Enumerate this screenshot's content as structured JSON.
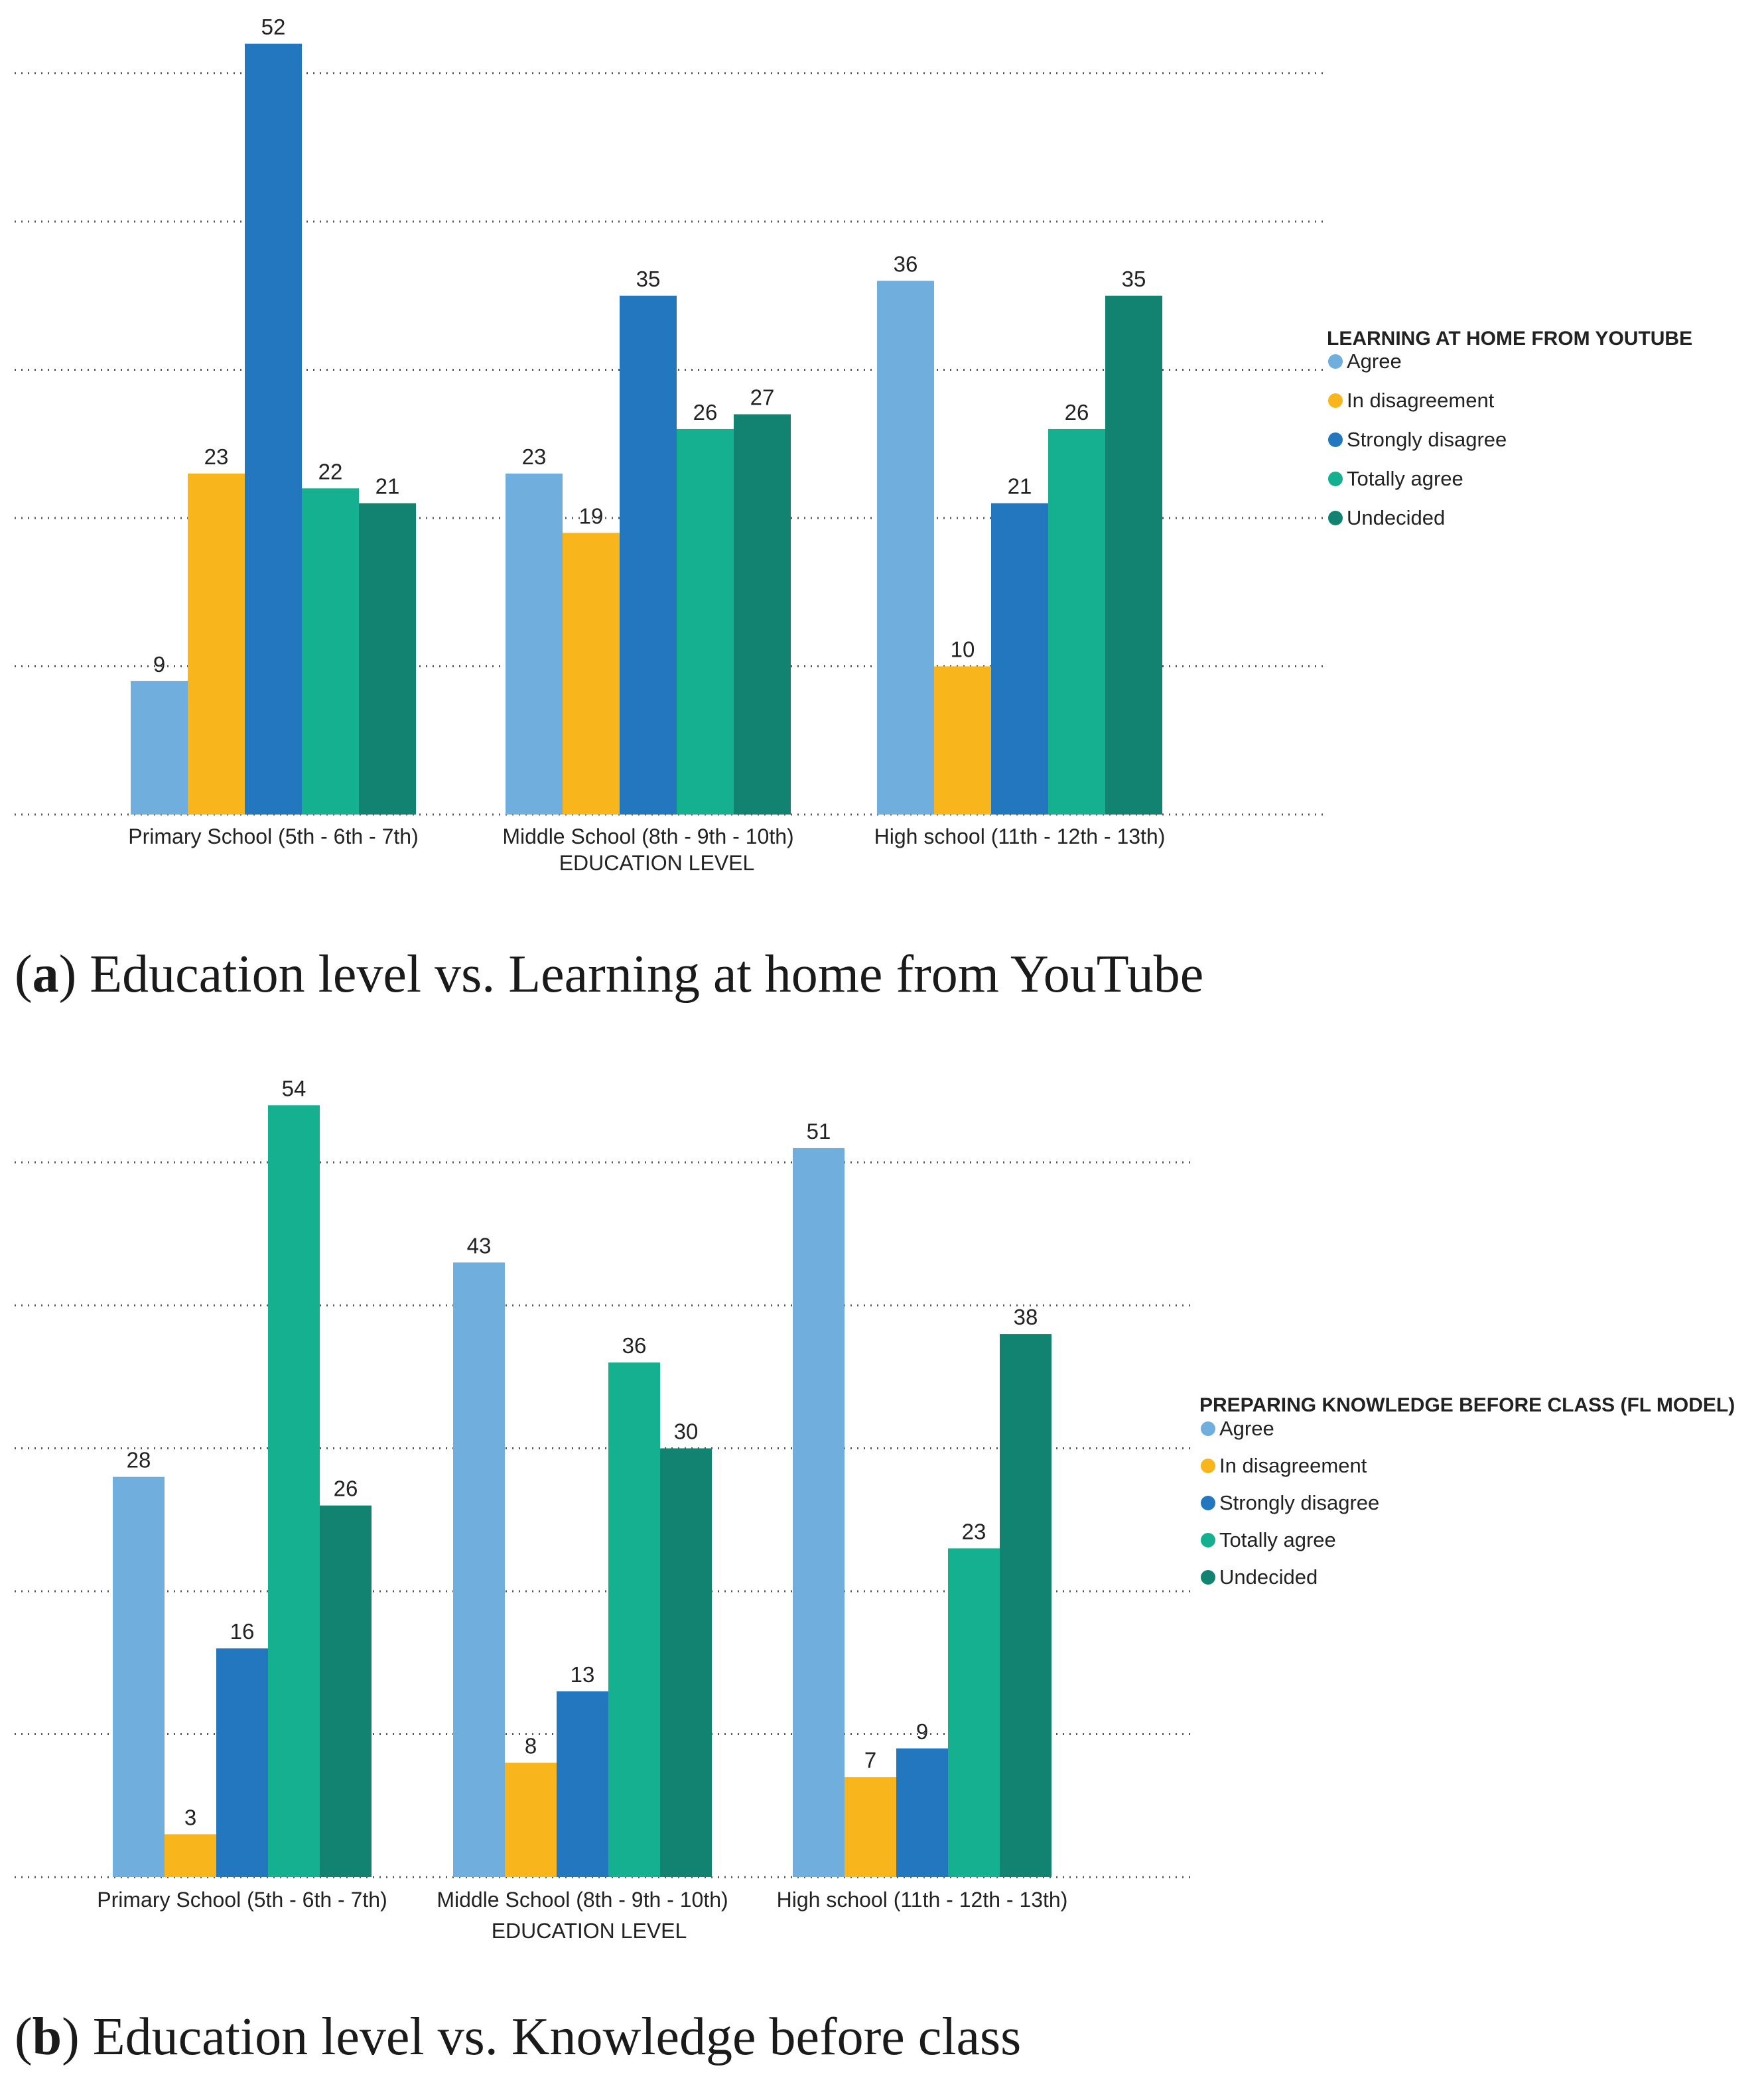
{
  "chart_data": [
    {
      "type": "bar",
      "caption_label": "a",
      "caption_text": "Education level vs. Learning at home from YouTube",
      "legend_title": "LEARNING AT HOME FROM YOUTUBE",
      "xlabel": "EDUCATION LEVEL",
      "categories": [
        "Primary School (5th - 6th - 7th)",
        "Middle School (8th - 9th - 10th)",
        "High school (11th - 12th - 13th)"
      ],
      "series": [
        {
          "name": "Agree",
          "color": "#6FAEDD",
          "values": [
            9,
            23,
            36
          ]
        },
        {
          "name": "In disagreement",
          "color": "#F8B51C",
          "values": [
            23,
            19,
            10
          ]
        },
        {
          "name": "Strongly disagree",
          "color": "#2277BE",
          "values": [
            52,
            35,
            21
          ]
        },
        {
          "name": "Totally agree",
          "color": "#15B090",
          "values": [
            22,
            26,
            26
          ]
        },
        {
          "name": "Undecided",
          "color": "#128370",
          "values": [
            21,
            27,
            35
          ]
        }
      ],
      "ylim": [
        0,
        60
      ],
      "gridlines": [
        0,
        10,
        20,
        30,
        40,
        50
      ],
      "legend_position": "right"
    },
    {
      "type": "bar",
      "caption_label": "b",
      "caption_text": "Education level vs. Knowledge before class",
      "legend_title": "PREPARING KNOWLEDGE BEFORE CLASS (FL MODEL)",
      "xlabel": "EDUCATION LEVEL",
      "categories": [
        "Primary School (5th - 6th - 7th)",
        "Middle School (8th - 9th - 10th)",
        "High school (11th - 12th - 13th)"
      ],
      "series": [
        {
          "name": "Agree",
          "color": "#6FAEDD",
          "values": [
            28,
            43,
            51
          ]
        },
        {
          "name": "In disagreement",
          "color": "#F8B51C",
          "values": [
            3,
            8,
            7
          ]
        },
        {
          "name": "Strongly disagree",
          "color": "#2277BE",
          "values": [
            16,
            13,
            9
          ]
        },
        {
          "name": "Totally agree",
          "color": "#15B090",
          "values": [
            54,
            36,
            23
          ]
        },
        {
          "name": "Undecided",
          "color": "#128370",
          "values": [
            26,
            30,
            38
          ]
        }
      ],
      "ylim": [
        0,
        60
      ],
      "gridlines": [
        0,
        10,
        20,
        30,
        40,
        50
      ],
      "legend_position": "right"
    }
  ]
}
